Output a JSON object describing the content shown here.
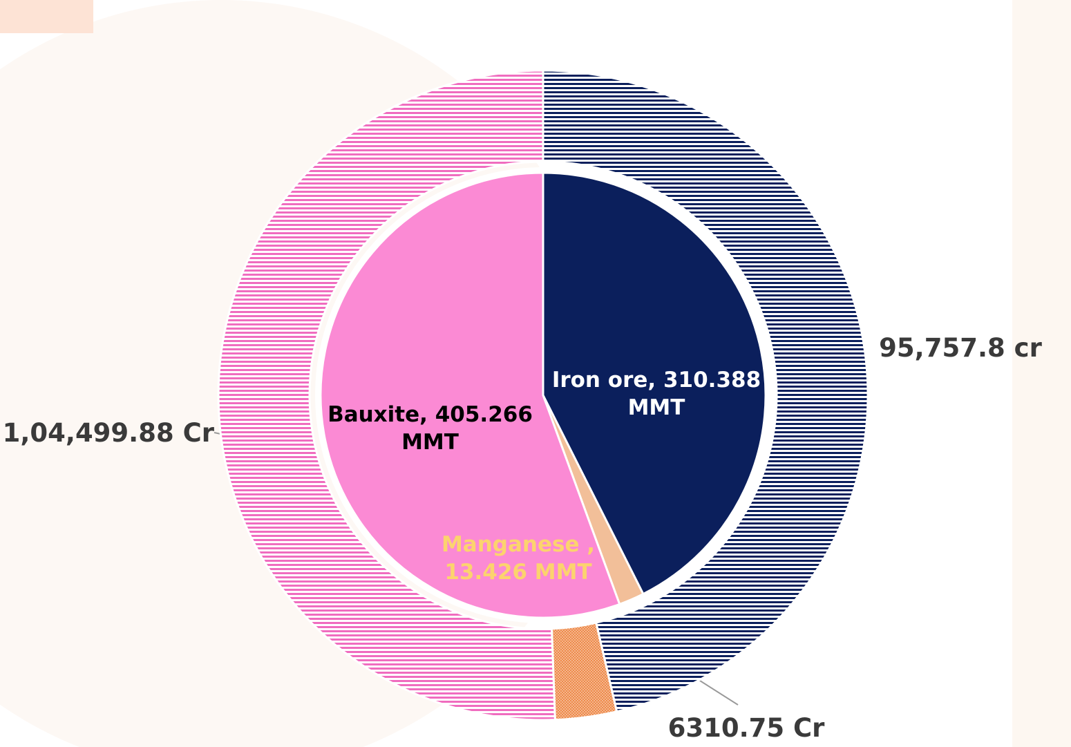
{
  "chart_data": {
    "type": "donut",
    "inner": {
      "values": [
        310.388,
        13.426,
        405.266
      ],
      "value_labels": [
        "Iron ore, 310.388 MMT",
        "Manganese , 13.426 MMT",
        "Bauxite, 405.266 MMT"
      ],
      "colors": [
        "#0b1f5c",
        "#f2bf99",
        "#fb8ad4"
      ]
    },
    "outer": {
      "values": [
        95757.8,
        6310.75,
        104499.88
      ],
      "value_labels": [
        "95,757.8 cr",
        "6310.75 Cr",
        "1,04,499.88 Cr"
      ],
      "colors": [
        "#0b1f5c",
        "#ee8a4a",
        "#f06cbf"
      ]
    }
  }
}
